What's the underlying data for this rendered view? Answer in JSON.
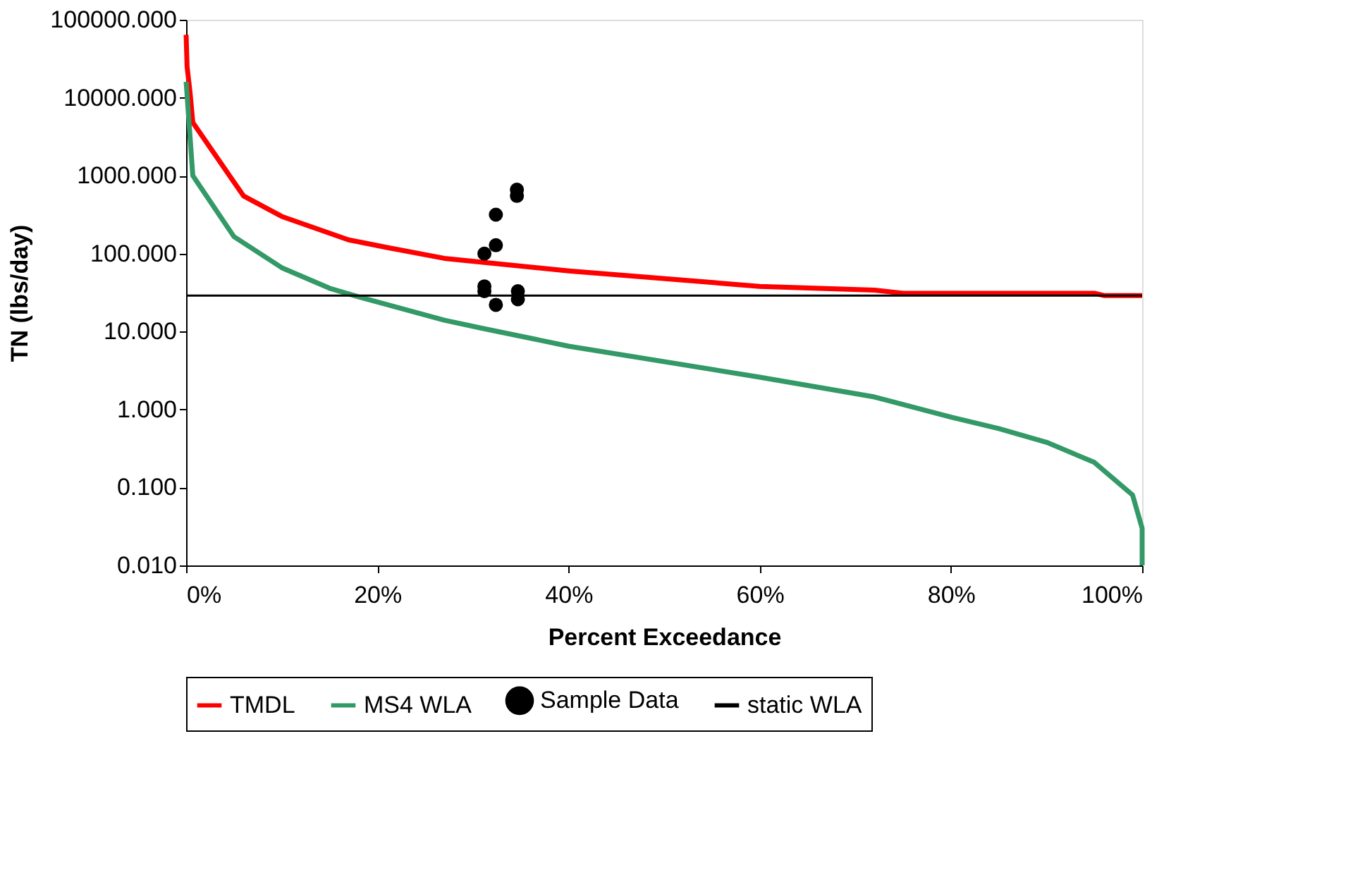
{
  "chart_data": {
    "type": "line",
    "xlabel": "Percent Exceedance",
    "ylabel": "TN (lbs/day)",
    "log": "y",
    "grid": false,
    "legend": "bottom",
    "line_style": "solid",
    "xlim": [
      0,
      100
    ],
    "xticks": [
      {
        "value": 0,
        "label": "0%"
      },
      {
        "value": 20,
        "label": "20%"
      },
      {
        "value": 40,
        "label": "40%"
      },
      {
        "value": 60,
        "label": "60%"
      },
      {
        "value": 80,
        "label": "80%"
      },
      {
        "value": 100,
        "label": "100%"
      }
    ],
    "ylim": [
      0.01,
      100000
    ],
    "yticks": [
      {
        "value": 0.01,
        "label": "0.010"
      },
      {
        "value": 0.1,
        "label": "0.100"
      },
      {
        "value": 1,
        "label": "1.000"
      },
      {
        "value": 10,
        "label": "10.000"
      },
      {
        "value": 100,
        "label": "100.000"
      },
      {
        "value": 1000,
        "label": "1000.000"
      },
      {
        "value": 10000,
        "label": "10000.000"
      },
      {
        "value": 100000,
        "label": "100000.000"
      }
    ],
    "series": [
      {
        "name": "TMDL",
        "color": "#ff0000",
        "x": [
          0,
          0.1,
          0.4,
          0.7,
          6,
          10,
          17,
          21,
          27,
          40,
          60,
          72,
          75,
          95,
          96,
          100
        ],
        "values": [
          64000,
          25000,
          12000,
          4800,
          550,
          300,
          150,
          120,
          87,
          60,
          38,
          34,
          31,
          31,
          29,
          29
        ]
      },
      {
        "name": "MS4 WLA",
        "color": "#339966",
        "x": [
          0,
          0.7,
          5,
          10,
          15,
          18,
          27,
          31,
          40,
          60,
          72,
          80,
          85,
          90,
          95,
          99,
          100,
          100
        ],
        "values": [
          16000,
          1000,
          165,
          66,
          36,
          28,
          14,
          11,
          6.5,
          2.6,
          1.45,
          0.8,
          0.57,
          0.38,
          0.21,
          0.08,
          0.03,
          0.01
        ]
      },
      {
        "name": "Sample Data",
        "type": "scatter",
        "color": "#000000",
        "marker": "circle",
        "x": [
          34.6,
          34.6,
          32.4,
          32.4,
          31.2,
          31.2,
          31.2,
          32.4,
          34.7,
          34.7
        ],
        "values": [
          660,
          550,
          316,
          128,
          100,
          38,
          33,
          22,
          33,
          26
        ]
      },
      {
        "name": "static WLA",
        "color": "#000000",
        "x": [
          0,
          100
        ],
        "values": [
          29,
          29
        ]
      }
    ]
  }
}
